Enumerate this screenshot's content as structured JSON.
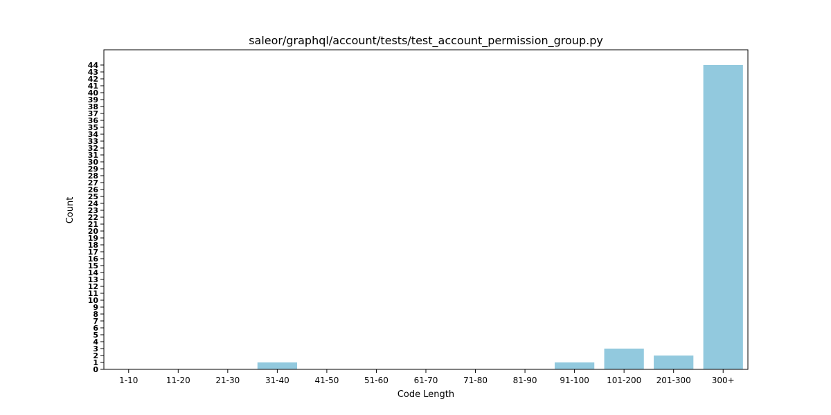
{
  "chart_data": {
    "type": "bar",
    "title": "saleor/graphql/account/tests/test_account_permission_group.py",
    "xlabel": "Code Length",
    "ylabel": "Count",
    "categories": [
      "1-10",
      "11-20",
      "21-30",
      "31-40",
      "41-50",
      "51-60",
      "61-70",
      "71-80",
      "81-90",
      "91-100",
      "101-200",
      "201-300",
      "300+"
    ],
    "values": [
      0,
      0,
      0,
      1,
      0,
      0,
      0,
      0,
      0,
      1,
      3,
      2,
      44
    ],
    "ylim": [
      0,
      44
    ],
    "yticks": [
      "0",
      "1",
      "2",
      "3",
      "4",
      "5",
      "6",
      "7",
      "8",
      "9",
      "10",
      "11",
      "12",
      "13",
      "14",
      "15",
      "16",
      "17",
      "18",
      "19",
      "20",
      "21",
      "22",
      "23",
      "24",
      "25",
      "26",
      "27",
      "28",
      "29",
      "30",
      "31",
      "32",
      "33",
      "34",
      "35",
      "36",
      "37",
      "38",
      "39",
      "40",
      "41",
      "42",
      "43",
      "44"
    ],
    "grid": false,
    "legend": "none",
    "bar_color": "#92c9de"
  }
}
